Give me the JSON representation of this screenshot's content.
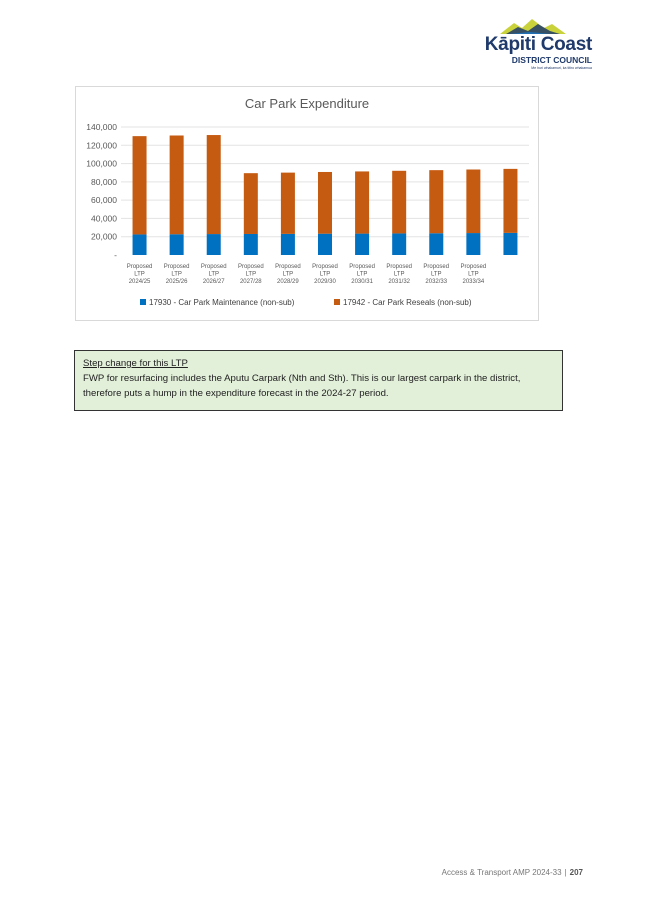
{
  "header": {
    "logo_line1": "Kāpiti Coast",
    "logo_line2": "DISTRICT COUNCIL",
    "logo_tagline": "Me huri whakamuri, ka titiro whakamua"
  },
  "chart_data": {
    "type": "bar",
    "stacked": true,
    "title": "Car Park Expenditure",
    "xlabel": "",
    "ylabel": "",
    "categories": [
      [
        "Proposed",
        "LTP",
        "2024/25"
      ],
      [
        "Proposed",
        "LTP",
        "2025/26"
      ],
      [
        "Proposed",
        "LTP",
        "2026/27"
      ],
      [
        "Proposed",
        "LTP",
        "2027/28"
      ],
      [
        "Proposed",
        "LTP",
        "2028/29"
      ],
      [
        "Proposed",
        "LTP",
        "2029/30"
      ],
      [
        "Proposed",
        "LTP",
        "2030/31"
      ],
      [
        "Proposed",
        "LTP",
        "2031/32"
      ],
      [
        "Proposed",
        "LTP",
        "2032/33"
      ],
      [
        "Proposed",
        "LTP",
        "2033/34"
      ],
      [
        "",
        "",
        ""
      ]
    ],
    "ylim": [
      0,
      140000
    ],
    "yticks": [
      0,
      20000,
      40000,
      60000,
      80000,
      100000,
      120000,
      140000
    ],
    "ytick_labels": [
      "-",
      "20,000",
      "40,000",
      "60,000",
      "80,000",
      "100,000",
      "120,000",
      "140,000"
    ],
    "grid": true,
    "legend_position": "bottom",
    "series": [
      {
        "name": "17930 - Car Park Maintenance (non-sub)",
        "color": "#0070c0",
        "values": [
          22500,
          22700,
          22900,
          23000,
          23100,
          23300,
          23400,
          23600,
          23800,
          24000,
          24200
        ]
      },
      {
        "name": "17942 - Car Park Reseals (non-sub)",
        "color": "#c55a11",
        "values": [
          107500,
          108000,
          108300,
          66500,
          67000,
          67500,
          68000,
          68500,
          69000,
          69500,
          70000
        ]
      }
    ]
  },
  "note": {
    "title": "Step change for this LTP",
    "body": "FWP for resurfacing includes the Aputu Carpark (Nth and Sth). This is our largest carpark in the district, therefore puts a hump in the expenditure forecast in the 2024-27 period."
  },
  "footer": {
    "doc_title": "Access & Transport AMP 2024-33",
    "separator": "|",
    "page_number": "207"
  }
}
